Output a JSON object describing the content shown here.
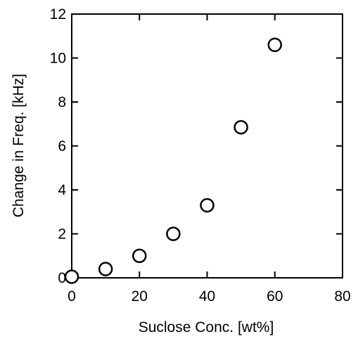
{
  "chart_data": {
    "type": "scatter",
    "title": "",
    "xlabel": "Suclose Conc. [wt%]",
    "ylabel": "Change in Freq. [kHz]",
    "xlim": [
      0,
      80
    ],
    "ylim": [
      0,
      12
    ],
    "x_ticks": [
      0,
      20,
      40,
      60,
      80
    ],
    "y_ticks": [
      0,
      2,
      4,
      6,
      8,
      10,
      12
    ],
    "x_tick_labels": [
      "0",
      "20",
      "40",
      "60",
      "80"
    ],
    "y_tick_labels": [
      "0",
      "2",
      "4",
      "6",
      "8",
      "10",
      "12"
    ],
    "grid": false,
    "legend": false,
    "marker": "open-circle",
    "series": [
      {
        "x": [
          0,
          10,
          20,
          30,
          40,
          50,
          60
        ],
        "y": [
          0.05,
          0.4,
          1.0,
          2.0,
          3.3,
          6.85,
          10.6
        ]
      }
    ]
  }
}
